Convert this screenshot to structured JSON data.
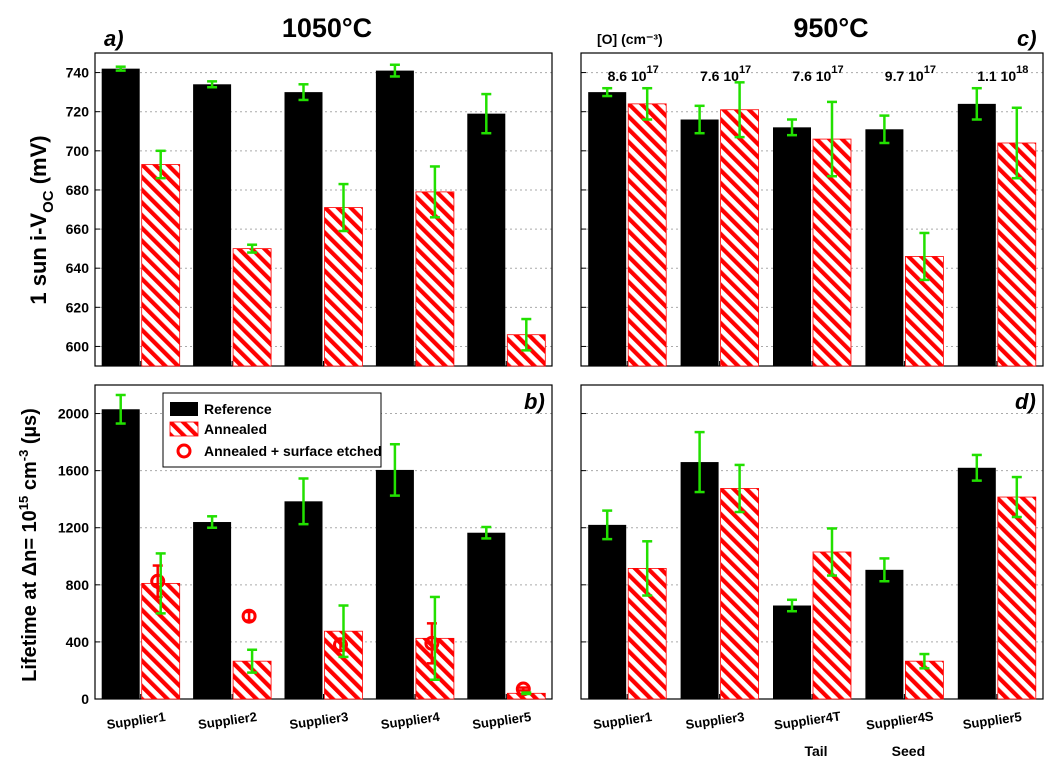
{
  "figure": {
    "ylabel_top": "1 sun i-V",
    "ylabel_top_sub": "OC",
    "ylabel_top_unit": " (mV)",
    "ylabel_bottom_pre": "Lifetime at ",
    "ylabel_bottom_delta": "Δ",
    "ylabel_bottom_mid": "n= 10",
    "ylabel_bottom_exp1": "15",
    "ylabel_bottom_mid2": " cm",
    "ylabel_bottom_exp2": "-3",
    "ylabel_bottom_unit": " (µs)",
    "colors": {
      "reference": "#000000",
      "annealed": "#ff0000",
      "error_bar": "#22e000",
      "etched": "#ff0000",
      "grid": "#aaaaaa"
    }
  },
  "legend": {
    "placement": "top-left of panel b",
    "entries": [
      "Reference",
      "Annealed",
      "Annealed + surface etched"
    ]
  },
  "chart_data": [
    {
      "id": "a",
      "type": "bar",
      "title": "1050°C",
      "panel_label": "a)",
      "categories": [
        "Supplier1",
        "Supplier2",
        "Supplier3",
        "Supplier4",
        "Supplier5"
      ],
      "ylim": [
        590,
        750
      ],
      "yticks": [
        600,
        620,
        640,
        660,
        680,
        700,
        720,
        740
      ],
      "grid": true,
      "series": [
        {
          "name": "Reference",
          "values": [
            742,
            734,
            730,
            741,
            719
          ],
          "errors": [
            1,
            1.5,
            4,
            3,
            10
          ]
        },
        {
          "name": "Annealed",
          "values": [
            693,
            650,
            671,
            679,
            606
          ],
          "errors": [
            7,
            2,
            12,
            13,
            8
          ]
        }
      ]
    },
    {
      "id": "c",
      "type": "bar",
      "title": "950°C",
      "panel_label": "c)",
      "header_note": "[O] (cm⁻³)",
      "categories": [
        "Supplier1",
        "Supplier3",
        "Supplier4T",
        "Supplier4S",
        "Supplier5"
      ],
      "group_annotations": [
        {
          "base": "8.6 10",
          "exp": "17"
        },
        {
          "base": "7.6 10",
          "exp": "17"
        },
        {
          "base": "7.6 10",
          "exp": "17"
        },
        {
          "base": "9.7 10",
          "exp": "17"
        },
        {
          "base": "1.1 10",
          "exp": "18"
        }
      ],
      "ylim": [
        590,
        750
      ],
      "grid": true,
      "series": [
        {
          "name": "Reference",
          "values": [
            730,
            716,
            712,
            711,
            724
          ],
          "errors": [
            2,
            7,
            4,
            7,
            8
          ]
        },
        {
          "name": "Annealed",
          "values": [
            724,
            721,
            706,
            646,
            704
          ],
          "errors": [
            8,
            14,
            19,
            12,
            18
          ]
        }
      ]
    },
    {
      "id": "b",
      "type": "bar",
      "panel_label": "b)",
      "categories": [
        "Supplier1",
        "Supplier2",
        "Supplier3",
        "Supplier4",
        "Supplier5"
      ],
      "ylim": [
        0,
        2200
      ],
      "yticks": [
        0,
        400,
        800,
        1200,
        1600,
        2000
      ],
      "grid": true,
      "series": [
        {
          "name": "Reference",
          "values": [
            2030,
            1240,
            1385,
            1605,
            1165
          ],
          "errors": [
            100,
            40,
            160,
            180,
            40
          ]
        },
        {
          "name": "Annealed",
          "values": [
            810,
            265,
            475,
            425,
            40
          ],
          "errors": [
            210,
            80,
            180,
            290,
            5
          ]
        },
        {
          "name": "Annealed + surface etched",
          "values": [
            825,
            580,
            380,
            390,
            70
          ],
          "errors": [
            110,
            30,
            40,
            140,
            10
          ]
        }
      ]
    },
    {
      "id": "d",
      "type": "bar",
      "panel_label": "d)",
      "categories": [
        "Supplier1",
        "Supplier3",
        "Supplier4T",
        "Supplier4S",
        "Supplier5"
      ],
      "category_sublabels": [
        "",
        "",
        "Tail",
        "Seed",
        ""
      ],
      "ylim": [
        0,
        2200
      ],
      "grid": true,
      "series": [
        {
          "name": "Reference",
          "values": [
            1220,
            1660,
            655,
            905,
            1620
          ],
          "errors": [
            100,
            210,
            40,
            80,
            90
          ]
        },
        {
          "name": "Annealed",
          "values": [
            915,
            1475,
            1030,
            265,
            1415
          ],
          "errors": [
            190,
            165,
            165,
            50,
            140
          ]
        }
      ]
    }
  ]
}
